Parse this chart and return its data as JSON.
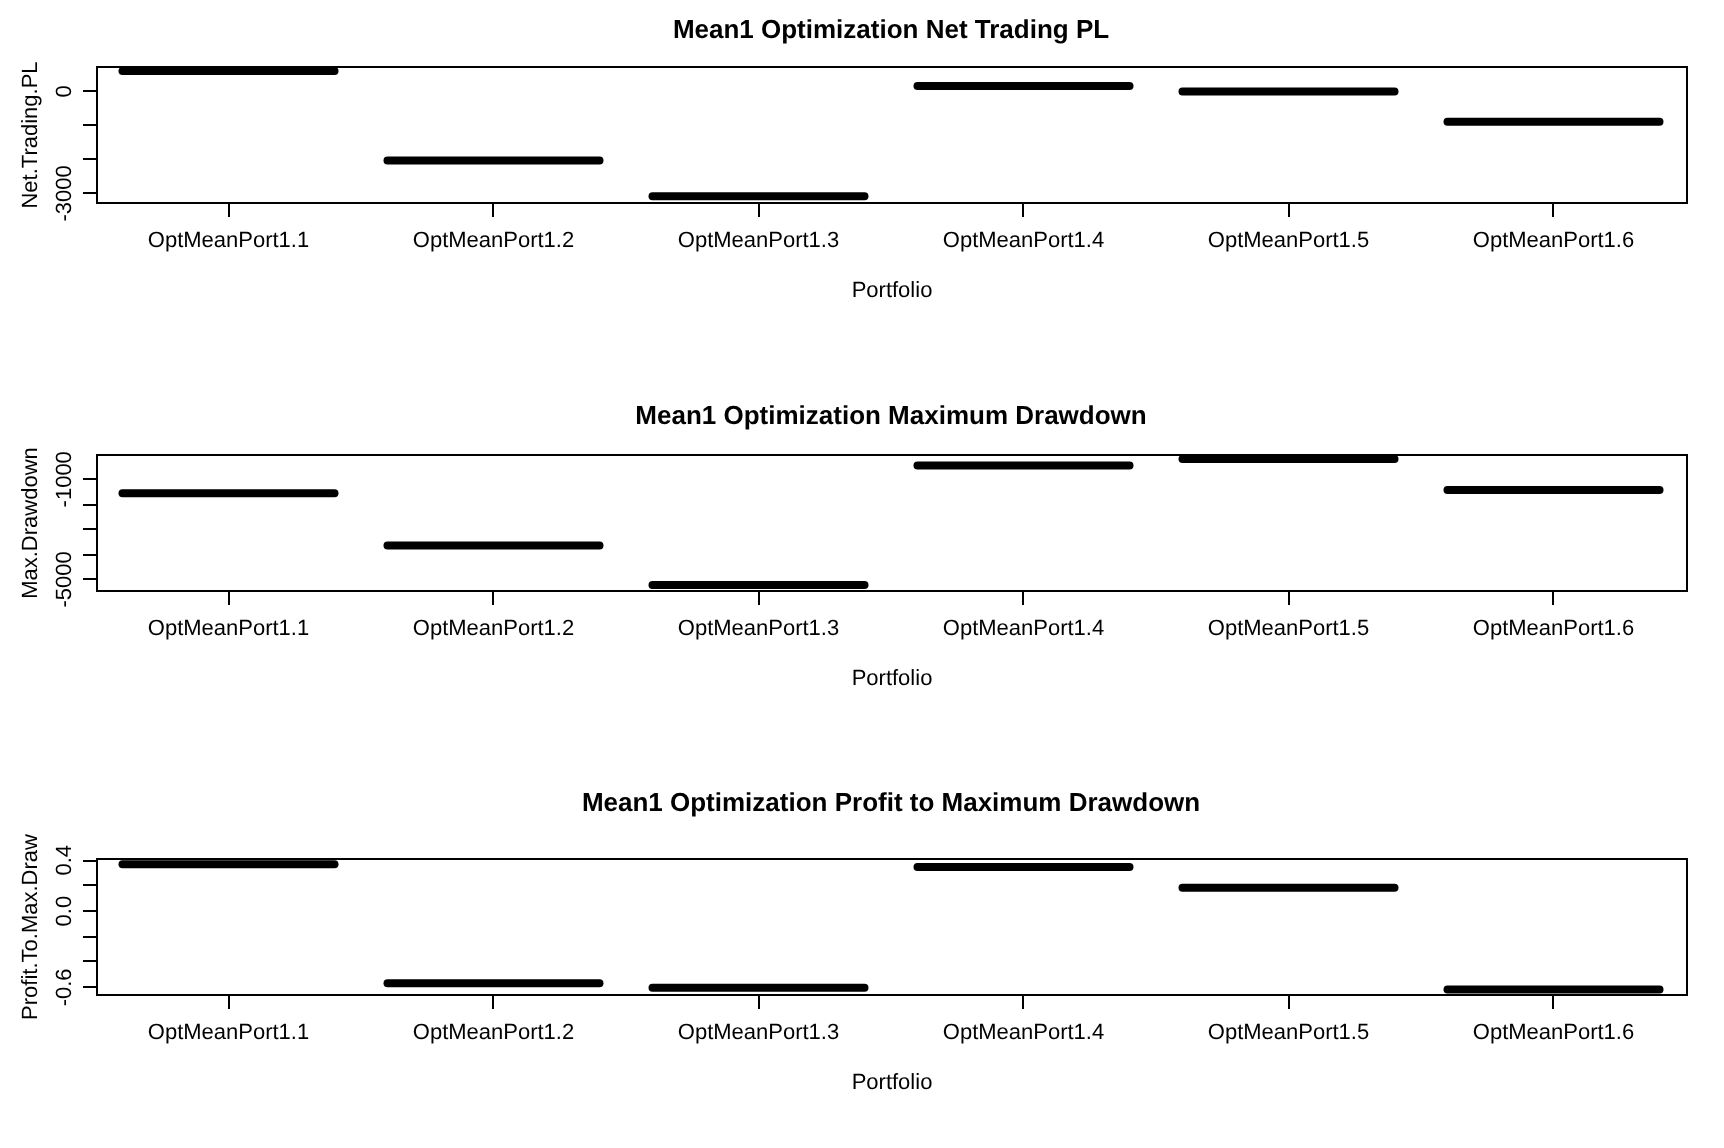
{
  "chart_data": [
    {
      "type": "box",
      "title": "Mean1 Optimization Net Trading PL",
      "xlabel": "Portfolio",
      "ylabel": "Net.Trading.PL",
      "categories": [
        "OptMeanPort1.1",
        "OptMeanPort1.2",
        "OptMeanPort1.3",
        "OptMeanPort1.4",
        "OptMeanPort1.5",
        "OptMeanPort1.6"
      ],
      "boxes": [
        {
          "low": 570,
          "q1": 570,
          "median": 570,
          "q3": 570,
          "high": 570
        },
        {
          "low": -2060,
          "q1": -2060,
          "median": -2060,
          "q3": -2060,
          "high": -2060
        },
        {
          "low": -3110,
          "q1": -3110,
          "median": -3110,
          "q3": -3110,
          "high": -3110
        },
        {
          "low": 130,
          "q1": 130,
          "median": 130,
          "q3": 130,
          "high": 130
        },
        {
          "low": -30,
          "q1": -30,
          "median": -30,
          "q3": -30,
          "high": -30
        },
        {
          "low": -920,
          "q1": -920,
          "median": -920,
          "q3": -920,
          "high": -920
        }
      ],
      "ylim": [
        -3280,
        720
      ],
      "yticks": [
        0,
        {
          "value": -1000,
          "label": null
        },
        {
          "value": -2000,
          "label": null
        },
        -3000
      ]
    },
    {
      "type": "box",
      "title": "Mean1 Optimization Maximum Drawdown",
      "xlabel": "Portfolio",
      "ylabel": "Max.Drawdown",
      "categories": [
        "OptMeanPort1.1",
        "OptMeanPort1.2",
        "OptMeanPort1.3",
        "OptMeanPort1.4",
        "OptMeanPort1.5",
        "OptMeanPort1.6"
      ],
      "boxes": [
        {
          "low": -1600,
          "q1": -1600,
          "median": -1600,
          "q3": -1600,
          "high": -1600
        },
        {
          "low": -3680,
          "q1": -3680,
          "median": -3680,
          "q3": -3680,
          "high": -3680
        },
        {
          "low": -5260,
          "q1": -5260,
          "median": -5260,
          "q3": -5260,
          "high": -5260
        },
        {
          "low": -490,
          "q1": -490,
          "median": -490,
          "q3": -490,
          "high": -490
        },
        {
          "low": -230,
          "q1": -230,
          "median": -230,
          "q3": -230,
          "high": -230
        },
        {
          "low": -1470,
          "q1": -1470,
          "median": -1470,
          "q3": -1470,
          "high": -1470
        }
      ],
      "ylim": [
        -5460,
        -30
      ],
      "yticks": [
        -1000,
        {
          "value": -2000,
          "label": null
        },
        {
          "value": -3000,
          "label": null
        },
        {
          "value": -4000,
          "label": null
        },
        -5000
      ]
    },
    {
      "type": "box",
      "title": "Mean1 Optimization Profit to Maximum Drawdown",
      "xlabel": "Portfolio",
      "ylabel": "Profit.To.Max.Draw",
      "categories": [
        "OptMeanPort1.1",
        "OptMeanPort1.2",
        "OptMeanPort1.3",
        "OptMeanPort1.4",
        "OptMeanPort1.5",
        "OptMeanPort1.6"
      ],
      "boxes": [
        {
          "low": 0.36,
          "q1": 0.36,
          "median": 0.36,
          "q3": 0.36,
          "high": 0.36
        },
        {
          "low": -0.575,
          "q1": -0.575,
          "median": -0.575,
          "q3": -0.575,
          "high": -0.575
        },
        {
          "low": -0.61,
          "q1": -0.61,
          "median": -0.61,
          "q3": -0.61,
          "high": -0.61
        },
        {
          "low": 0.34,
          "q1": 0.34,
          "median": 0.34,
          "q3": 0.34,
          "high": 0.34
        },
        {
          "low": 0.175,
          "q1": 0.175,
          "median": 0.175,
          "q3": 0.175,
          "high": 0.175
        },
        {
          "low": -0.625,
          "q1": -0.625,
          "median": -0.625,
          "q3": -0.625,
          "high": -0.625
        }
      ],
      "ylim": [
        -0.66,
        0.41
      ],
      "yticks": [
        0.4,
        {
          "value": 0.2,
          "label": null
        },
        {
          "value": 0,
          "label": "0.0"
        },
        {
          "value": -0.2,
          "label": null
        },
        {
          "value": -0.4,
          "label": null
        },
        -0.6
      ]
    }
  ]
}
